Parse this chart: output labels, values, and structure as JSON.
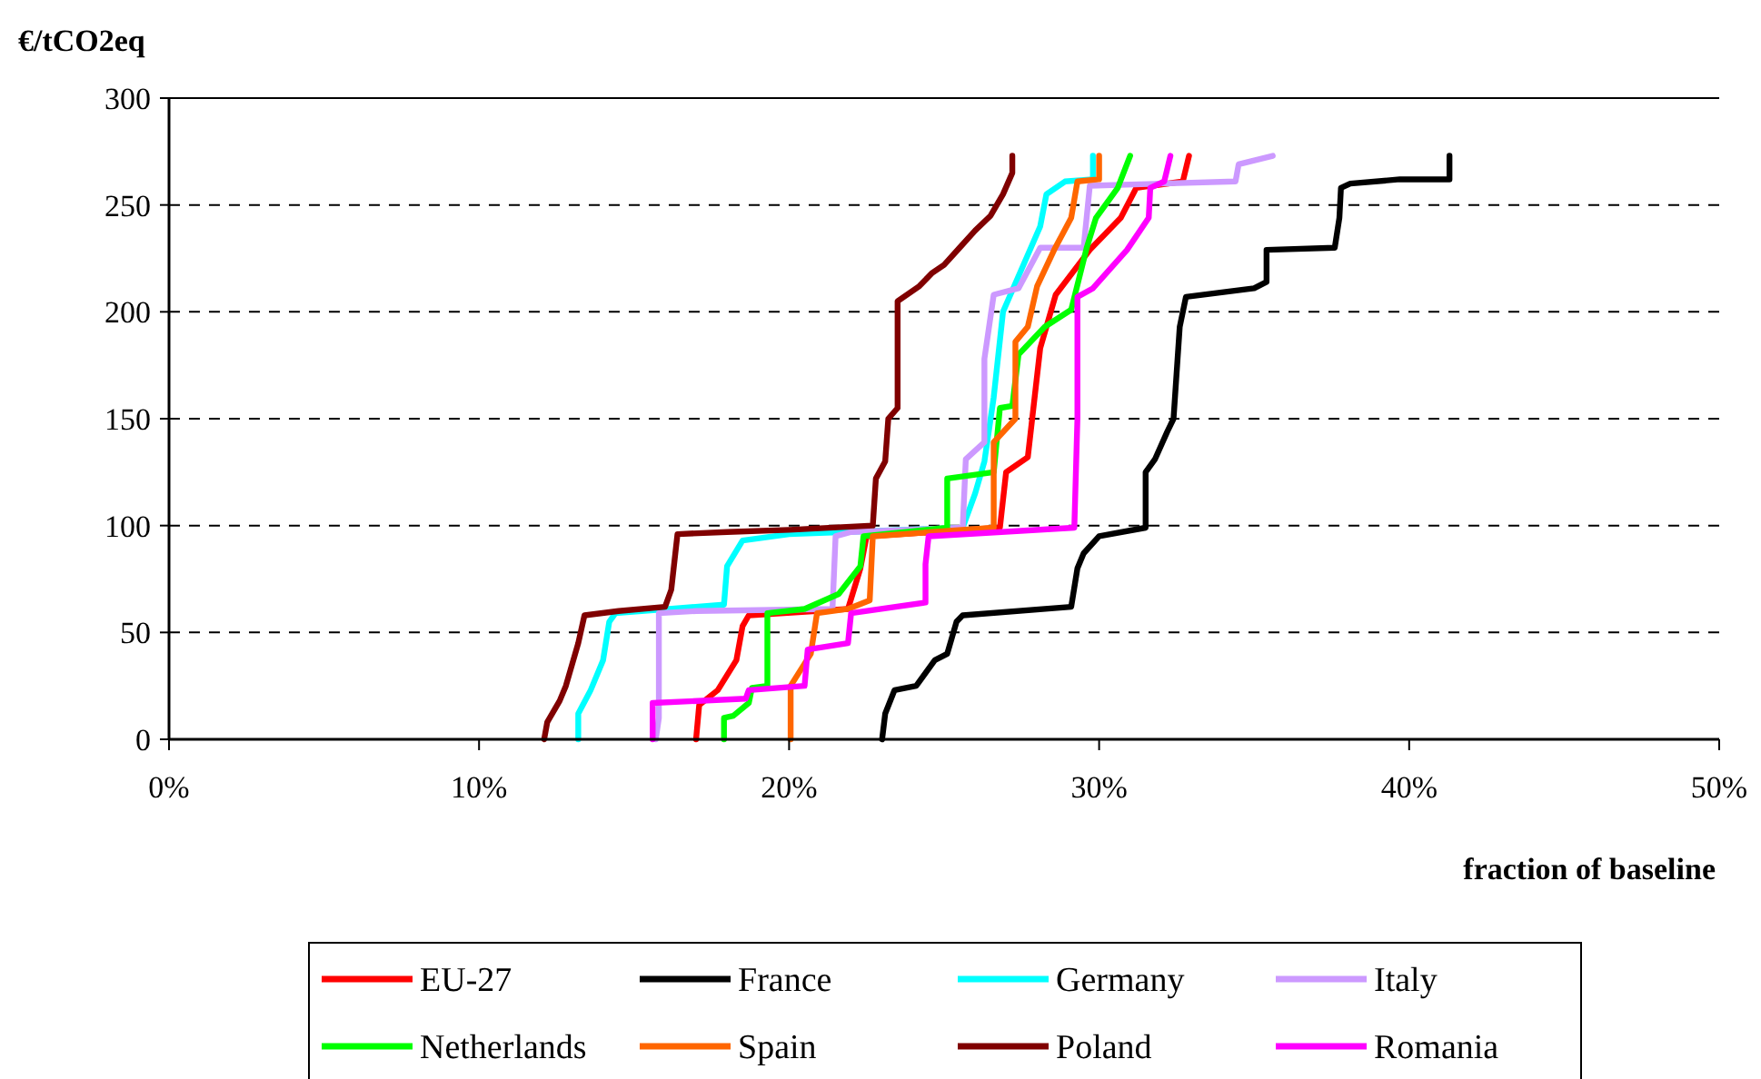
{
  "chart_data": {
    "type": "line",
    "ylabel": "€/tCO2eq",
    "xlabel": "fraction of baseline",
    "xlim": [
      0,
      50
    ],
    "xticks": [
      {
        "value": 0,
        "label": "0%"
      },
      {
        "value": 10,
        "label": "10%"
      },
      {
        "value": 20,
        "label": "20%"
      },
      {
        "value": 30,
        "label": "30%"
      },
      {
        "value": 40,
        "label": "40%"
      },
      {
        "value": 50,
        "label": "50%"
      }
    ],
    "ylim": [
      0,
      300
    ],
    "yticks": [
      0,
      50,
      100,
      150,
      200,
      250,
      300
    ],
    "grid": "y",
    "legend": "bottom",
    "marker": "none",
    "line_style": "solid",
    "series": [
      {
        "name": "EU-27",
        "color": "#ff0000",
        "x": [
          17.0,
          17.1,
          17.7,
          18.3,
          18.5,
          18.7,
          21.9,
          22.3,
          22.5,
          26.8,
          27.0,
          27.7,
          28.1,
          28.6,
          29.7,
          30.7,
          31.2,
          32.7,
          32.9
        ],
        "values": [
          0,
          16,
          23,
          37,
          53,
          58,
          61,
          80,
          95,
          99,
          125,
          132,
          183,
          208,
          229,
          244,
          258,
          261,
          273
        ]
      },
      {
        "name": "France",
        "color": "#000000",
        "x": [
          23.0,
          23.1,
          23.4,
          24.1,
          24.7,
          25.1,
          25.4,
          25.6,
          29.1,
          29.3,
          29.5,
          30.0,
          31.5,
          31.5,
          31.8,
          32.2,
          32.4,
          32.6,
          32.8,
          35.0,
          35.4,
          35.4,
          37.6,
          37.75,
          37.8,
          38.1,
          39.7,
          41.3,
          41.3
        ],
        "values": [
          0,
          12,
          23,
          25,
          37,
          40,
          55,
          58,
          62,
          80,
          87,
          95,
          99,
          125,
          131,
          144,
          150,
          193,
          207,
          211,
          214,
          229,
          230,
          244,
          258,
          260,
          262,
          262,
          273
        ]
      },
      {
        "name": "Germany",
        "color": "#00ffff",
        "x": [
          13.2,
          13.2,
          13.6,
          14.0,
          14.2,
          14.4,
          17.9,
          18.0,
          18.5,
          20.0,
          25.6,
          26.0,
          26.3,
          26.6,
          26.9,
          27.2,
          27.8,
          28.1,
          28.3,
          28.9,
          29.8,
          29.8
        ],
        "values": [
          0,
          12,
          23,
          37,
          55,
          59,
          63,
          81,
          93,
          96,
          99,
          115,
          130,
          160,
          200,
          210,
          230,
          240,
          255,
          261,
          262,
          273
        ]
      },
      {
        "name": "Italy",
        "color": "#cc99ff",
        "x": [
          15.7,
          15.8,
          15.8,
          17.0,
          21.4,
          21.5,
          22.0,
          25.6,
          25.7,
          26.3,
          26.3,
          26.6,
          27.4,
          28.1,
          29.5,
          29.7,
          34.4,
          34.5,
          35.6
        ],
        "values": [
          0,
          10,
          59,
          60,
          61,
          95,
          97,
          99,
          131,
          139,
          178,
          208,
          211,
          230,
          230,
          259,
          261,
          269,
          273
        ]
      },
      {
        "name": "Netherlands",
        "color": "#00ff00",
        "x": [
          17.9,
          17.9,
          18.2,
          18.7,
          18.8,
          19.3,
          19.3,
          20.5,
          21.6,
          22.3,
          22.4,
          25.1,
          25.1,
          26.6,
          26.8,
          27.2,
          27.4,
          28.25,
          29.1,
          29.6,
          29.9,
          30.6,
          31.0
        ],
        "values": [
          0,
          10,
          11,
          17,
          24,
          25,
          59,
          61,
          68,
          81,
          95,
          99,
          122,
          125,
          155,
          156,
          180,
          193,
          201,
          230,
          244,
          258,
          273
        ]
      },
      {
        "name": "Spain",
        "color": "#ff6600",
        "x": [
          20.05,
          20.05,
          20.7,
          20.9,
          21.9,
          22.6,
          22.7,
          26.6,
          26.6,
          27.3,
          27.3,
          27.7,
          28.0,
          28.55,
          29.1,
          29.3,
          30.0,
          30.0
        ],
        "values": [
          0,
          25,
          40,
          59,
          61,
          65,
          95,
          99,
          139,
          150,
          186,
          193,
          212,
          229,
          244,
          261,
          262,
          273
        ]
      },
      {
        "name": "Poland",
        "color": "#800000",
        "x": [
          12.1,
          12.2,
          12.6,
          12.8,
          13.0,
          13.2,
          13.4,
          14.5,
          16.0,
          16.2,
          16.4,
          18.0,
          20.0,
          22.7,
          22.8,
          23.1,
          23.2,
          23.5,
          23.5,
          24.2,
          24.6,
          25.0,
          25.5,
          26.0,
          26.5,
          26.9,
          27.2,
          27.2
        ],
        "values": [
          0,
          8,
          18,
          25,
          35,
          45,
          58,
          60,
          62,
          70,
          96,
          97,
          98,
          100,
          122,
          130,
          150,
          155,
          205,
          212,
          218,
          222,
          230,
          238,
          245,
          255,
          265,
          273
        ]
      },
      {
        "name": "Romania",
        "color": "#ff00ff",
        "x": [
          15.6,
          15.6,
          18.6,
          18.7,
          20.5,
          20.6,
          21.9,
          22.0,
          24.4,
          24.4,
          24.5,
          29.2,
          29.3,
          29.3,
          29.8,
          30.9,
          31.6,
          31.65,
          32.1,
          32.3
        ],
        "values": [
          0,
          17,
          19,
          23,
          25,
          42,
          45,
          59,
          64,
          82,
          95,
          99,
          150,
          207,
          211,
          229,
          244,
          258,
          261,
          273
        ]
      }
    ]
  }
}
